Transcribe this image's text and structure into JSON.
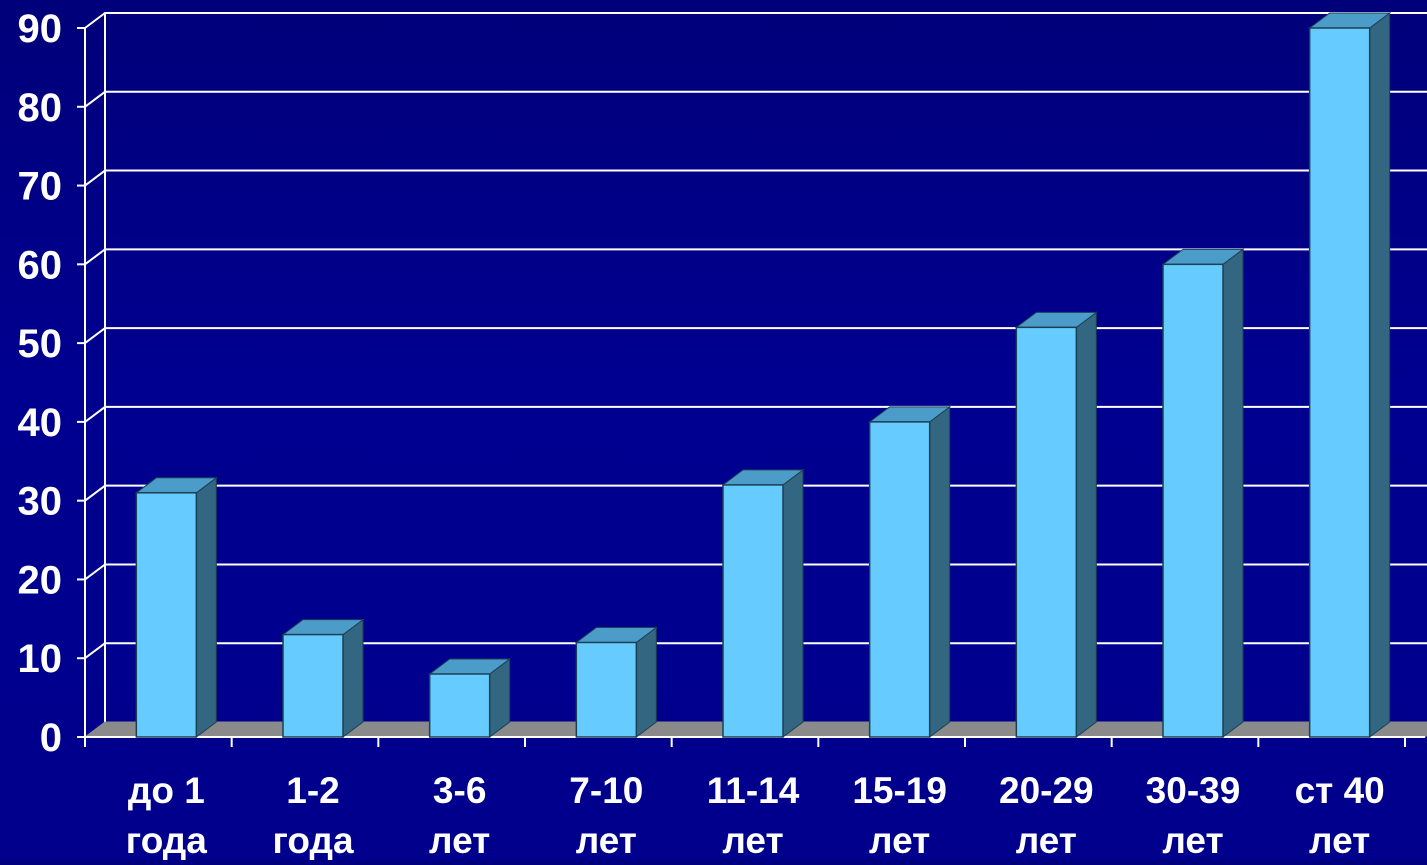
{
  "chart_data": {
    "type": "bar",
    "title": "",
    "xlabel": "",
    "ylabel": "",
    "categories": [
      [
        "до 1",
        "года"
      ],
      [
        "1-2",
        "года"
      ],
      [
        "3-6",
        "лет"
      ],
      [
        "7-10",
        "лет"
      ],
      [
        "11-14",
        "лет"
      ],
      [
        "15-19",
        "лет"
      ],
      [
        "20-29",
        "лет"
      ],
      [
        "30-39",
        "лет"
      ],
      [
        "ст 40",
        "лет"
      ]
    ],
    "values": [
      31,
      13,
      8,
      12,
      32,
      40,
      52,
      60,
      90
    ],
    "ylim": [
      0,
      90
    ],
    "yticks": [
      "0",
      "10",
      "20",
      "30",
      "40",
      "50",
      "60",
      "70",
      "80",
      "90"
    ],
    "grid": true,
    "style": "3d-column",
    "colors": {
      "background": "#000080",
      "bar_front": "#66ccff",
      "bar_top": "#4b9cc8",
      "bar_side": "#336680",
      "floor": "#8a8a8a",
      "grid": "#ffffff",
      "text": "#ffffff"
    }
  }
}
